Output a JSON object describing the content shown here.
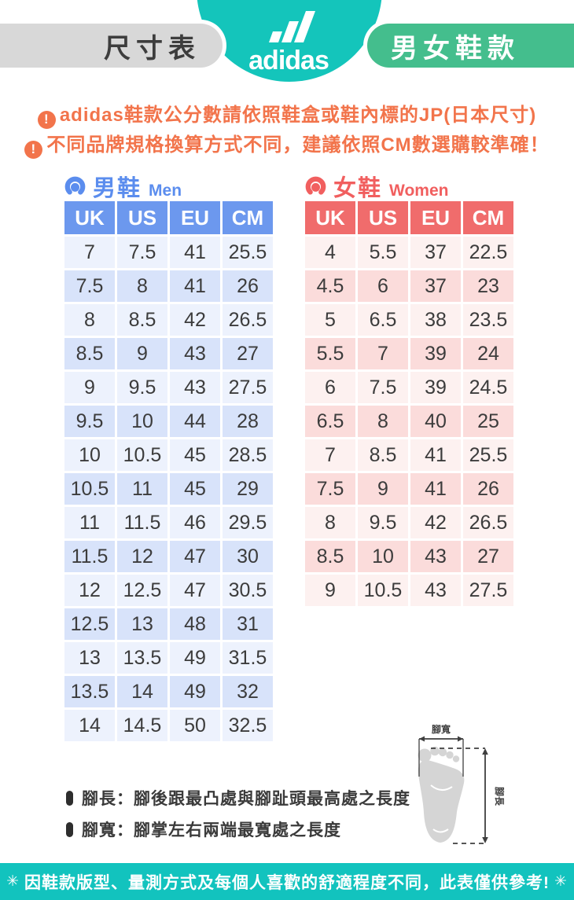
{
  "header": {
    "size_chart_label": "尺寸表",
    "category_label": "男女鞋款",
    "brand_logo": "adidas"
  },
  "notices": {
    "icon": "!",
    "line1": "adidas鞋款公分數請依照鞋盒或鞋內標的JP(日本尺寸)",
    "line2": "不同品牌規格換算方式不同，建議依照CM數選購較準確！"
  },
  "men": {
    "title_zh": "男鞋",
    "title_en": "Men",
    "headers": [
      "UK",
      "US",
      "EU",
      "CM"
    ],
    "rows": [
      [
        7,
        7.5,
        41,
        25.5
      ],
      [
        7.5,
        8,
        41,
        26
      ],
      [
        8,
        8.5,
        42,
        26.5
      ],
      [
        8.5,
        9,
        43,
        27
      ],
      [
        9,
        9.5,
        43,
        27.5
      ],
      [
        9.5,
        10,
        44,
        28
      ],
      [
        10,
        10.5,
        45,
        28.5
      ],
      [
        10.5,
        11,
        45,
        29
      ],
      [
        11,
        11.5,
        46,
        29.5
      ],
      [
        11.5,
        12,
        47,
        30
      ],
      [
        12,
        12.5,
        47,
        30.5
      ],
      [
        12.5,
        13,
        48,
        31
      ],
      [
        13,
        13.5,
        49,
        31.5
      ],
      [
        13.5,
        14,
        49,
        32
      ],
      [
        14,
        14.5,
        50,
        32.5
      ]
    ]
  },
  "women": {
    "title_zh": "女鞋",
    "title_en": "Women",
    "headers": [
      "UK",
      "US",
      "EU",
      "CM"
    ],
    "rows": [
      [
        4,
        5.5,
        37,
        22.5
      ],
      [
        4.5,
        6,
        37,
        23
      ],
      [
        5,
        6.5,
        38,
        23.5
      ],
      [
        5.5,
        7,
        39,
        24
      ],
      [
        6,
        7.5,
        39,
        24.5
      ],
      [
        6.5,
        8,
        40,
        25
      ],
      [
        7,
        8.5,
        41,
        25.5
      ],
      [
        7.5,
        9,
        41,
        26
      ],
      [
        8,
        9.5,
        42,
        26.5
      ],
      [
        8.5,
        10,
        43,
        27
      ],
      [
        9,
        10.5,
        43,
        27.5
      ]
    ]
  },
  "legend": {
    "line1": "腳長：腳後跟最凸處與腳趾頭最高處之長度",
    "line2": "腳寬：腳掌左右兩端最寬處之長度"
  },
  "diagram": {
    "width_label": "腳寬",
    "length_label": "腳長"
  },
  "footer": {
    "star": "✳",
    "text": "因鞋款版型、量測方式及每個人喜歡的舒適程度不同，此表僅供參考!"
  },
  "colors": {
    "teal": "#14C5BB",
    "footer_teal": "#12C3BE",
    "green_pill": "#44BE8D",
    "gray_pill": "#D8D8D8",
    "warning_orange": "#F2744B",
    "men_blue": "#6C98EE",
    "men_row_light": "#EDF2FD",
    "men_row_dark": "#D8E3FA",
    "women_red": "#F06C6C",
    "women_row_light": "#FDF1F0",
    "women_row_dark": "#FBDCDB"
  }
}
